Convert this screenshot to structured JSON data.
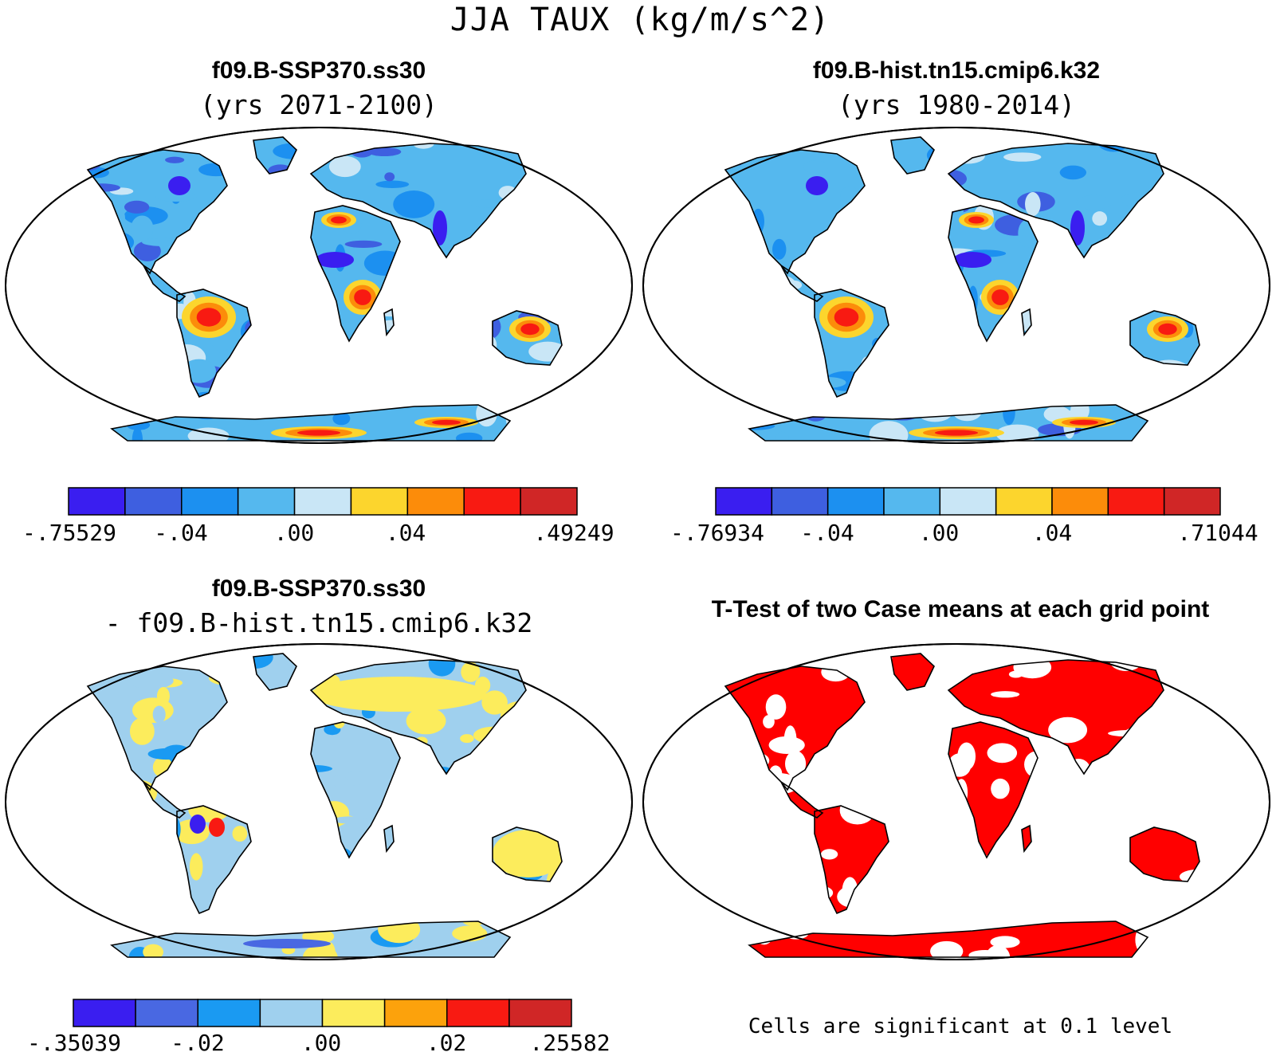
{
  "title": "JJA TAUX (kg/m/s^2)",
  "panels": [
    {
      "title": "f09.B-SSP370.ss30",
      "subtitle": "(yrs 2071-2100)",
      "colorbar": {
        "labels": [
          "-.75529",
          "-.04",
          ".00",
          ".04",
          ".49249"
        ],
        "colors": [
          "#3a1ef0",
          "#3e5fe0",
          "#1c90f0",
          "#55b8ee",
          "#c9e6f6",
          "#fcd52d",
          "#fc8c0a",
          "#f81a12",
          "#d02626"
        ]
      }
    },
    {
      "title": "f09.B-hist.tn15.cmip6.k32",
      "subtitle": "(yrs 1980-2014)",
      "colorbar": {
        "labels": [
          "-.76934",
          "-.04",
          ".00",
          ".04",
          ".71044"
        ],
        "colors": [
          "#3a1ef0",
          "#3e5fe0",
          "#1c90f0",
          "#55b8ee",
          "#c9e6f6",
          "#fcd52d",
          "#fc8c0a",
          "#f81a12",
          "#d02626"
        ]
      }
    },
    {
      "title": "f09.B-SSP370.ss30",
      "subtitle": "- f09.B-hist.tn15.cmip6.k32",
      "colorbar": {
        "labels": [
          "-.35039",
          "-.02",
          ".00",
          ".02",
          ".25582"
        ],
        "colors": [
          "#3a1ef0",
          "#4968e2",
          "#1a9af2",
          "#9fd0ee",
          "#fcec5c",
          "#fca20c",
          "#f81a12",
          "#d02626"
        ]
      }
    },
    {
      "title": "T-Test of two Case means at each grid point",
      "note": "Cells are significant at 0.1 level",
      "significant_color": "#ff0000"
    }
  ]
}
